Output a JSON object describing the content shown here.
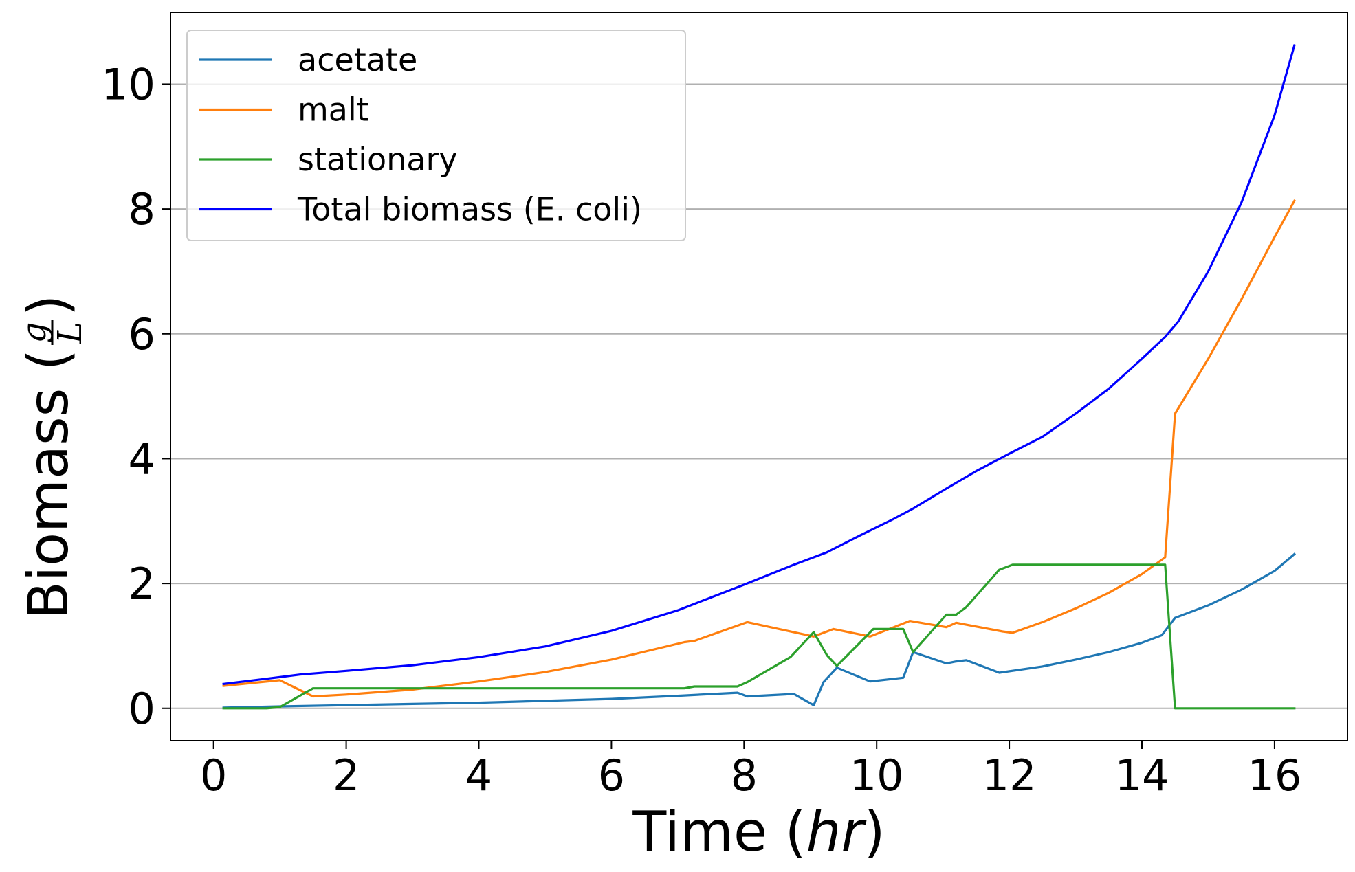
{
  "chart_data": {
    "type": "line",
    "xlabel": "Time (hr)",
    "xlabel_parts": {
      "pre": "Time (",
      "italic": "hr",
      "post": ")"
    },
    "ylabel": "Biomass (g/L)",
    "ylabel_parts": {
      "pre": "Biomass (",
      "num": "g",
      "den": "L",
      "post": ")"
    },
    "xlim": [
      -0.65,
      17.1
    ],
    "ylim": [
      -0.52,
      11.15
    ],
    "xticks": [
      0,
      2,
      4,
      6,
      8,
      10,
      12,
      14,
      16
    ],
    "xtick_labels": [
      "0",
      "2",
      "4",
      "6",
      "8",
      "10",
      "12",
      "14",
      "16"
    ],
    "yticks": [
      0,
      2,
      4,
      6,
      8,
      10
    ],
    "ytick_labels": [
      "0",
      "2",
      "4",
      "6",
      "8",
      "10"
    ],
    "grid": "y",
    "legend_position": "top-left",
    "series": [
      {
        "name": "acetate",
        "color": "#1f77b4",
        "points": [
          [
            0.15,
            0.01
          ],
          [
            1.0,
            0.03
          ],
          [
            2,
            0.05
          ],
          [
            3,
            0.07
          ],
          [
            4,
            0.09
          ],
          [
            5,
            0.12
          ],
          [
            6,
            0.15
          ],
          [
            7,
            0.2
          ],
          [
            7.9,
            0.25
          ],
          [
            8.05,
            0.19
          ],
          [
            8.75,
            0.23
          ],
          [
            9.05,
            0.05
          ],
          [
            9.2,
            0.42
          ],
          [
            9.4,
            0.65
          ],
          [
            9.9,
            0.43
          ],
          [
            10.4,
            0.49
          ],
          [
            10.55,
            0.9
          ],
          [
            11.05,
            0.72
          ],
          [
            11.2,
            0.75
          ],
          [
            11.35,
            0.77
          ],
          [
            11.85,
            0.57
          ],
          [
            12.5,
            0.67
          ],
          [
            13,
            0.78
          ],
          [
            13.5,
            0.9
          ],
          [
            14.0,
            1.05
          ],
          [
            14.3,
            1.17
          ],
          [
            14.5,
            1.45
          ],
          [
            15,
            1.65
          ],
          [
            15.5,
            1.9
          ],
          [
            16.0,
            2.2
          ],
          [
            16.3,
            2.47
          ]
        ]
      },
      {
        "name": "malt",
        "color": "#ff7f0e",
        "points": [
          [
            0.15,
            0.36
          ],
          [
            1.0,
            0.45
          ],
          [
            1.5,
            0.19
          ],
          [
            2,
            0.22
          ],
          [
            3,
            0.3
          ],
          [
            4,
            0.43
          ],
          [
            5,
            0.58
          ],
          [
            6,
            0.78
          ],
          [
            7.1,
            1.06
          ],
          [
            7.25,
            1.08
          ],
          [
            8.05,
            1.38
          ],
          [
            9.05,
            1.15
          ],
          [
            9.35,
            1.27
          ],
          [
            9.9,
            1.15
          ],
          [
            10.5,
            1.4
          ],
          [
            11.05,
            1.3
          ],
          [
            11.2,
            1.37
          ],
          [
            11.9,
            1.23
          ],
          [
            12.05,
            1.21
          ],
          [
            12.5,
            1.38
          ],
          [
            13,
            1.6
          ],
          [
            13.5,
            1.85
          ],
          [
            14.0,
            2.15
          ],
          [
            14.35,
            2.42
          ],
          [
            14.5,
            4.72
          ],
          [
            15.0,
            5.6
          ],
          [
            15.5,
            6.55
          ],
          [
            16.0,
            7.55
          ],
          [
            16.3,
            8.13
          ]
        ]
      },
      {
        "name": "stationary",
        "color": "#2ca02c",
        "points": [
          [
            0.15,
            0.0
          ],
          [
            0.8,
            0.0
          ],
          [
            1.0,
            0.02
          ],
          [
            1.5,
            0.32
          ],
          [
            7.1,
            0.32
          ],
          [
            7.25,
            0.35
          ],
          [
            7.9,
            0.35
          ],
          [
            8.05,
            0.42
          ],
          [
            8.7,
            0.82
          ],
          [
            9.05,
            1.22
          ],
          [
            9.25,
            0.85
          ],
          [
            9.4,
            0.68
          ],
          [
            9.95,
            1.27
          ],
          [
            10.4,
            1.27
          ],
          [
            10.55,
            0.9
          ],
          [
            11.05,
            1.5
          ],
          [
            11.2,
            1.5
          ],
          [
            11.35,
            1.62
          ],
          [
            11.85,
            2.22
          ],
          [
            12.05,
            2.3
          ],
          [
            14.35,
            2.3
          ],
          [
            14.5,
            0.0
          ],
          [
            16.3,
            0.0
          ]
        ]
      },
      {
        "name": "Total biomass (E. coli)",
        "color": "#0000ff",
        "points": [
          [
            0.15,
            0.39
          ],
          [
            1.0,
            0.5
          ],
          [
            1.3,
            0.54
          ],
          [
            2,
            0.6
          ],
          [
            3,
            0.69
          ],
          [
            4,
            0.82
          ],
          [
            5,
            0.99
          ],
          [
            6,
            1.24
          ],
          [
            7,
            1.57
          ],
          [
            8,
            1.98
          ],
          [
            8.75,
            2.3
          ],
          [
            9.25,
            2.5
          ],
          [
            9.75,
            2.77
          ],
          [
            10.25,
            3.03
          ],
          [
            10.55,
            3.2
          ],
          [
            11.05,
            3.52
          ],
          [
            11.5,
            3.8
          ],
          [
            12.0,
            4.08
          ],
          [
            12.5,
            4.35
          ],
          [
            13.0,
            4.72
          ],
          [
            13.5,
            5.12
          ],
          [
            14.0,
            5.6
          ],
          [
            14.35,
            5.95
          ],
          [
            14.55,
            6.2
          ],
          [
            15.0,
            7.0
          ],
          [
            15.5,
            8.1
          ],
          [
            16.0,
            9.5
          ],
          [
            16.3,
            10.62
          ]
        ]
      }
    ]
  }
}
